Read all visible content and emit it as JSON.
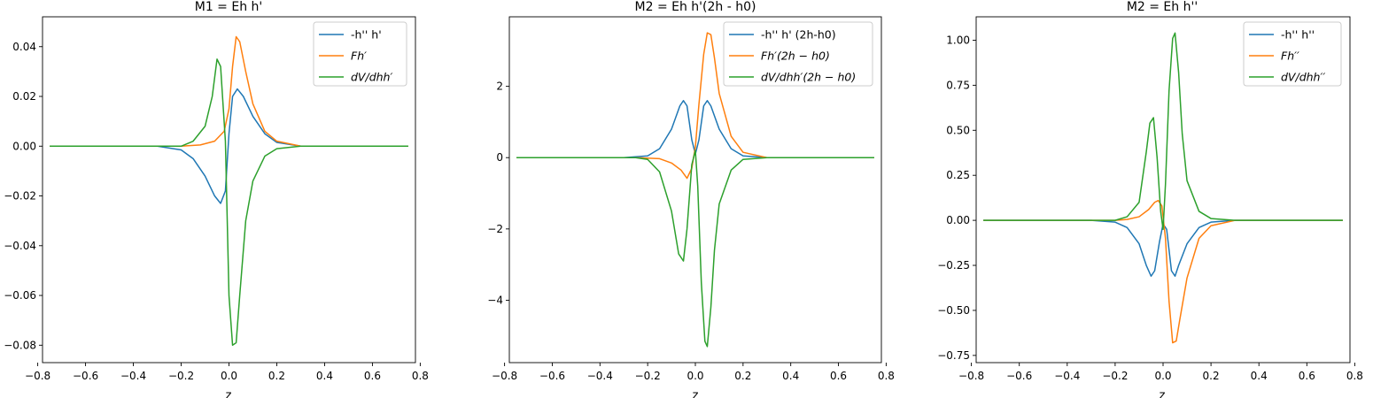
{
  "chart_data": [
    {
      "type": "line",
      "title": "M1 = Eh h'",
      "xlabel": "z",
      "ylabel": "",
      "xlim": [
        -0.78,
        0.78
      ],
      "ylim": [
        -0.087,
        0.052
      ],
      "xticks": [
        -0.8,
        -0.6,
        -0.4,
        -0.2,
        0.0,
        0.2,
        0.4,
        0.6,
        0.8
      ],
      "xtick_labels": [
        "−0.8",
        "−0.6",
        "−0.4",
        "−0.2",
        "0.0",
        "0.2",
        "0.4",
        "0.6",
        "0.8"
      ],
      "yticks": [
        -0.08,
        -0.06,
        -0.04,
        -0.02,
        0.0,
        0.02,
        0.04
      ],
      "ytick_labels": [
        "−0.08",
        "−0.06",
        "−0.04",
        "−0.02",
        "0.00",
        "0.02",
        "0.04"
      ],
      "legend_position": "top-right",
      "grid": false,
      "series": [
        {
          "name": "-h'' h'",
          "color": "#1f77b4",
          "points": [
            [
              -0.75,
              0
            ],
            [
              -0.3,
              0
            ],
            [
              -0.2,
              -0.0015
            ],
            [
              -0.15,
              -0.005
            ],
            [
              -0.1,
              -0.012
            ],
            [
              -0.06,
              -0.02
            ],
            [
              -0.035,
              -0.023
            ],
            [
              -0.015,
              -0.018
            ],
            [
              0.0,
              0.005
            ],
            [
              0.015,
              0.02
            ],
            [
              0.035,
              0.023
            ],
            [
              0.06,
              0.02
            ],
            [
              0.1,
              0.012
            ],
            [
              0.15,
              0.005
            ],
            [
              0.2,
              0.0015
            ],
            [
              0.3,
              0
            ],
            [
              0.75,
              0
            ]
          ]
        },
        {
          "name": "Fh′",
          "color": "#ff7f0e",
          "points": [
            [
              -0.75,
              0
            ],
            [
              -0.2,
              0
            ],
            [
              -0.12,
              0.0005
            ],
            [
              -0.06,
              0.002
            ],
            [
              -0.02,
              0.006
            ],
            [
              0.0,
              0.015
            ],
            [
              0.015,
              0.032
            ],
            [
              0.03,
              0.044
            ],
            [
              0.045,
              0.042
            ],
            [
              0.07,
              0.03
            ],
            [
              0.1,
              0.017
            ],
            [
              0.15,
              0.006
            ],
            [
              0.2,
              0.002
            ],
            [
              0.3,
              0
            ],
            [
              0.75,
              0
            ]
          ]
        },
        {
          "name": "dV/dhh′",
          "color": "#2ca02c",
          "points": [
            [
              -0.75,
              0
            ],
            [
              -0.2,
              0
            ],
            [
              -0.15,
              0.002
            ],
            [
              -0.1,
              0.008
            ],
            [
              -0.07,
              0.02
            ],
            [
              -0.05,
              0.035
            ],
            [
              -0.035,
              0.032
            ],
            [
              -0.015,
              0.002
            ],
            [
              0.0,
              -0.06
            ],
            [
              0.015,
              -0.08
            ],
            [
              0.03,
              -0.079
            ],
            [
              0.045,
              -0.06
            ],
            [
              0.07,
              -0.03
            ],
            [
              0.1,
              -0.014
            ],
            [
              0.15,
              -0.004
            ],
            [
              0.2,
              -0.001
            ],
            [
              0.3,
              0
            ],
            [
              0.75,
              0
            ]
          ]
        }
      ]
    },
    {
      "type": "line",
      "title": "M2 = Eh h'(2h - h0)",
      "xlabel": "z",
      "ylabel": "",
      "xlim": [
        -0.78,
        0.78
      ],
      "ylim": [
        -5.75,
        3.95
      ],
      "xticks": [
        -0.8,
        -0.6,
        -0.4,
        -0.2,
        0.0,
        0.2,
        0.4,
        0.6,
        0.8
      ],
      "xtick_labels": [
        "−0.8",
        "−0.6",
        "−0.4",
        "−0.2",
        "0.0",
        "0.2",
        "0.4",
        "0.6",
        "0.8"
      ],
      "yticks": [
        -4,
        -2,
        0,
        2
      ],
      "ytick_labels": [
        "−4",
        "−2",
        "0",
        "2"
      ],
      "legend_position": "top-right",
      "grid": false,
      "series": [
        {
          "name": "-h'' h' (2h-h0)",
          "color": "#1f77b4",
          "points": [
            [
              -0.75,
              0
            ],
            [
              -0.3,
              0
            ],
            [
              -0.2,
              0.05
            ],
            [
              -0.15,
              0.25
            ],
            [
              -0.1,
              0.8
            ],
            [
              -0.065,
              1.45
            ],
            [
              -0.05,
              1.6
            ],
            [
              -0.035,
              1.45
            ],
            [
              -0.015,
              0.5
            ],
            [
              0.0,
              0.1
            ],
            [
              0.015,
              0.5
            ],
            [
              0.035,
              1.45
            ],
            [
              0.05,
              1.6
            ],
            [
              0.065,
              1.45
            ],
            [
              0.1,
              0.8
            ],
            [
              0.15,
              0.25
            ],
            [
              0.2,
              0.05
            ],
            [
              0.3,
              0
            ],
            [
              0.75,
              0
            ]
          ]
        },
        {
          "name": "Fh′(2h − h0)",
          "color": "#ff7f0e",
          "points": [
            [
              -0.75,
              0
            ],
            [
              -0.25,
              0
            ],
            [
              -0.15,
              -0.03
            ],
            [
              -0.1,
              -0.15
            ],
            [
              -0.06,
              -0.35
            ],
            [
              -0.035,
              -0.58
            ],
            [
              -0.015,
              -0.3
            ],
            [
              0.0,
              0.3
            ],
            [
              0.015,
              1.5
            ],
            [
              0.035,
              2.9
            ],
            [
              0.05,
              3.5
            ],
            [
              0.065,
              3.45
            ],
            [
              0.08,
              2.8
            ],
            [
              0.1,
              1.8
            ],
            [
              0.15,
              0.6
            ],
            [
              0.2,
              0.15
            ],
            [
              0.3,
              0
            ],
            [
              0.75,
              0
            ]
          ]
        },
        {
          "name": "dV/dhh′(2h − h0)",
          "color": "#2ca02c",
          "points": [
            [
              -0.75,
              0
            ],
            [
              -0.25,
              0
            ],
            [
              -0.2,
              -0.05
            ],
            [
              -0.15,
              -0.4
            ],
            [
              -0.1,
              -1.5
            ],
            [
              -0.07,
              -2.7
            ],
            [
              -0.05,
              -2.9
            ],
            [
              -0.035,
              -2.0
            ],
            [
              -0.015,
              -0.2
            ],
            [
              0.0,
              0.2
            ],
            [
              0.01,
              -0.8
            ],
            [
              0.025,
              -3.5
            ],
            [
              0.04,
              -5.15
            ],
            [
              0.05,
              -5.3
            ],
            [
              0.065,
              -4.2
            ],
            [
              0.08,
              -2.6
            ],
            [
              0.1,
              -1.3
            ],
            [
              0.15,
              -0.35
            ],
            [
              0.2,
              -0.05
            ],
            [
              0.3,
              0
            ],
            [
              0.75,
              0
            ]
          ]
        }
      ]
    },
    {
      "type": "line",
      "title": "M2 = Eh h''",
      "xlabel": "z",
      "ylabel": "",
      "xlim": [
        -0.78,
        0.78
      ],
      "ylim": [
        -0.79,
        1.13
      ],
      "xticks": [
        -0.8,
        -0.6,
        -0.4,
        -0.2,
        0.0,
        0.2,
        0.4,
        0.6,
        0.8
      ],
      "xtick_labels": [
        "−0.8",
        "−0.6",
        "−0.4",
        "−0.2",
        "0.0",
        "0.2",
        "0.4",
        "0.6",
        "0.8"
      ],
      "yticks": [
        -0.75,
        -0.5,
        -0.25,
        0.0,
        0.25,
        0.5,
        0.75,
        1.0
      ],
      "ytick_labels": [
        "−0.75",
        "−0.50",
        "−0.25",
        "0.00",
        "0.25",
        "0.50",
        "0.75",
        "1.00"
      ],
      "legend_position": "top-right",
      "grid": false,
      "series": [
        {
          "name": "-h'' h''",
          "color": "#1f77b4",
          "points": [
            [
              -0.75,
              0
            ],
            [
              -0.3,
              0
            ],
            [
              -0.2,
              -0.01
            ],
            [
              -0.15,
              -0.04
            ],
            [
              -0.1,
              -0.13
            ],
            [
              -0.07,
              -0.25
            ],
            [
              -0.05,
              -0.31
            ],
            [
              -0.035,
              -0.28
            ],
            [
              -0.015,
              -0.12
            ],
            [
              0.0,
              -0.02
            ],
            [
              0.015,
              -0.05
            ],
            [
              0.035,
              -0.28
            ],
            [
              0.05,
              -0.31
            ],
            [
              0.065,
              -0.25
            ],
            [
              0.1,
              -0.13
            ],
            [
              0.15,
              -0.04
            ],
            [
              0.2,
              -0.01
            ],
            [
              0.3,
              0
            ],
            [
              0.75,
              0
            ]
          ]
        },
        {
          "name": "Fh′′",
          "color": "#ff7f0e",
          "points": [
            [
              -0.75,
              0
            ],
            [
              -0.2,
              0
            ],
            [
              -0.15,
              0.005
            ],
            [
              -0.1,
              0.02
            ],
            [
              -0.06,
              0.06
            ],
            [
              -0.035,
              0.1
            ],
            [
              -0.02,
              0.11
            ],
            [
              -0.005,
              0.08
            ],
            [
              0.01,
              -0.1
            ],
            [
              0.025,
              -0.45
            ],
            [
              0.04,
              -0.68
            ],
            [
              0.055,
              -0.67
            ],
            [
              0.07,
              -0.55
            ],
            [
              0.1,
              -0.32
            ],
            [
              0.15,
              -0.1
            ],
            [
              0.2,
              -0.03
            ],
            [
              0.3,
              0
            ],
            [
              0.75,
              0
            ]
          ]
        },
        {
          "name": "dV/dhh′′",
          "color": "#2ca02c",
          "points": [
            [
              -0.75,
              0
            ],
            [
              -0.2,
              0
            ],
            [
              -0.15,
              0.02
            ],
            [
              -0.1,
              0.1
            ],
            [
              -0.07,
              0.38
            ],
            [
              -0.055,
              0.54
            ],
            [
              -0.04,
              0.57
            ],
            [
              -0.025,
              0.35
            ],
            [
              -0.01,
              0.05
            ],
            [
              0.0,
              -0.05
            ],
            [
              0.01,
              0.2
            ],
            [
              0.025,
              0.72
            ],
            [
              0.04,
              1.01
            ],
            [
              0.05,
              1.04
            ],
            [
              0.065,
              0.82
            ],
            [
              0.08,
              0.48
            ],
            [
              0.1,
              0.22
            ],
            [
              0.15,
              0.05
            ],
            [
              0.2,
              0.01
            ],
            [
              0.3,
              0
            ],
            [
              0.75,
              0
            ]
          ]
        }
      ]
    }
  ]
}
